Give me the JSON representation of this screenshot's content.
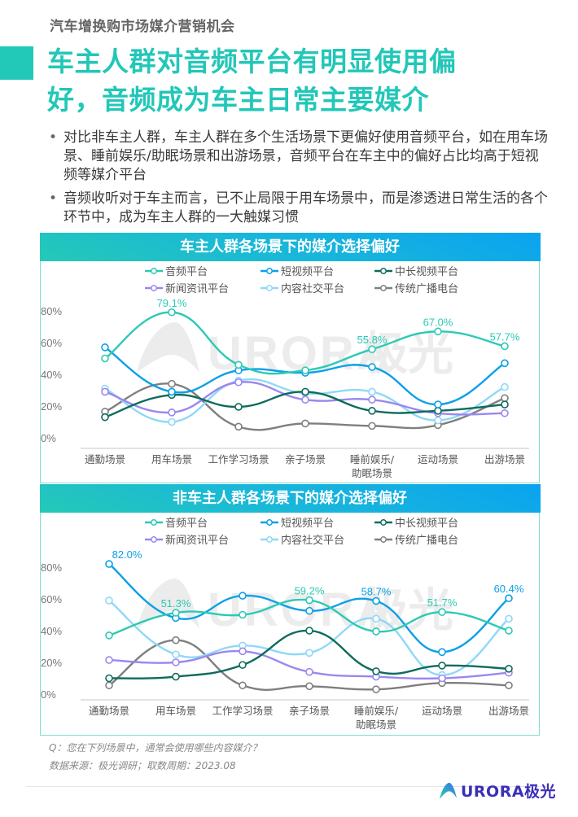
{
  "header": {
    "subtitle": "汽车增换购市场媒介营销机会",
    "title_line1": "车主人群对音频平台有明显使用偏",
    "title_line2": "好，音频成为车主日常主要媒介",
    "accent_color": "#22c7b8"
  },
  "bullets": [
    "对比非车主人群，车主人群在多个生活场景下更偏好使用音频平台，如在用车场景、睡前娱乐/助眠场景和出游场景，音频平台在车主中的偏好占比均高于短视频等媒介平台",
    "音频收听对于车主而言，已不止局限于用车场景中，而是渗透进日常生活的各个环节中，成为车主人群的一大触媒习惯"
  ],
  "bullet_symbol": "•",
  "watermark": {
    "latin": "URORA",
    "cjk": "极光"
  },
  "chart_data": [
    {
      "type": "line",
      "title": "车主人群各场景下的媒介选择偏好",
      "xlabel": "",
      "ylabel": "",
      "categories": [
        "通勤场景",
        "用车场景",
        "工作学习场景",
        "亲子场景",
        "睡前娱乐/助眠场景",
        "运动场景",
        "出游场景"
      ],
      "ylim": [
        0,
        80
      ],
      "yticks": [
        "0%",
        "20%",
        "40%",
        "60%",
        "80%"
      ],
      "legend_position": "top",
      "grid": false,
      "series": [
        {
          "name": "音频平台",
          "color": "#2cc9b5",
          "values": [
            50,
            79.1,
            46,
            42.5,
            55.8,
            67.0,
            57.7
          ],
          "labels": [
            "",
            "79.1%",
            "",
            "",
            "55.8%",
            "67.0%",
            "57.7%"
          ]
        },
        {
          "name": "短视频平台",
          "color": "#0aa0e8",
          "values": [
            57,
            29,
            42.5,
            41,
            44.6,
            21,
            47
          ],
          "labels": [
            "",
            "",
            "",
            "",
            "",
            "",
            ""
          ]
        },
        {
          "name": "中长视频平台",
          "color": "#0e6b5c",
          "values": [
            13,
            27,
            19.5,
            29,
            17,
            17,
            21
          ],
          "labels": [
            "",
            "",
            "",
            "",
            "",
            "",
            ""
          ]
        },
        {
          "name": "新闻资讯平台",
          "color": "#9b87f0",
          "values": [
            29,
            16,
            35,
            24,
            24,
            15.5,
            15.5
          ],
          "labels": [
            "",
            "",
            "",
            "",
            "",
            "",
            ""
          ]
        },
        {
          "name": "内容社交平台",
          "color": "#8fd8f8",
          "values": [
            31,
            10,
            36,
            28,
            29,
            11,
            32
          ],
          "labels": [
            "",
            "",
            "",
            "",
            "",
            "",
            ""
          ]
        },
        {
          "name": "传统广播电台",
          "color": "#7f7f7f",
          "values": [
            16.5,
            34,
            7,
            9,
            7.5,
            8,
            25
          ],
          "labels": [
            "",
            "",
            "",
            "",
            "",
            "",
            ""
          ]
        }
      ]
    },
    {
      "type": "line",
      "title": "非车主人群各场景下的媒介选择偏好",
      "xlabel": "",
      "ylabel": "",
      "categories": [
        "通勤场景",
        "用车场景",
        "工作学习场景",
        "亲子场景",
        "睡前娱乐/助眠场景",
        "运动场景",
        "出游场景"
      ],
      "ylim": [
        0,
        80
      ],
      "yticks": [
        "0%",
        "20%",
        "40%",
        "60%",
        "80%"
      ],
      "legend_position": "top",
      "grid": false,
      "series": [
        {
          "name": "音频平台",
          "color": "#2cc9b5",
          "values": [
            37,
            51.3,
            50,
            59.2,
            39.5,
            51.7,
            40
          ],
          "labels": [
            "",
            "51.3%",
            "",
            "59.2%",
            "",
            "51.7%",
            ""
          ]
        },
        {
          "name": "短视频平台",
          "color": "#0aa0e8",
          "values": [
            82.0,
            48,
            62,
            52.5,
            58.7,
            26.5,
            60.4
          ],
          "labels": [
            "82.0%",
            "",
            "",
            "",
            "58.7%",
            "",
            "60.4%"
          ]
        },
        {
          "name": "中长视频平台",
          "color": "#0e6b5c",
          "values": [
            10,
            11,
            18.4,
            40,
            14.4,
            18,
            16
          ],
          "labels": [
            "",
            "",
            "",
            "",
            "",
            "",
            ""
          ]
        },
        {
          "name": "新闻资讯平台",
          "color": "#9b87f0",
          "values": [
            21.5,
            20,
            27,
            14,
            11,
            10,
            13.5
          ],
          "labels": [
            "",
            "",
            "",
            "",
            "",
            "",
            ""
          ]
        },
        {
          "name": "内容社交平台",
          "color": "#8fd8f8",
          "values": [
            59,
            25,
            30.6,
            26,
            47.5,
            12,
            47.5
          ],
          "labels": [
            "",
            "",
            "",
            "",
            "",
            "",
            ""
          ]
        },
        {
          "name": "传统广播电台",
          "color": "#7f7f7f",
          "values": [
            5.5,
            34,
            5.5,
            5,
            3,
            7,
            5.5
          ],
          "labels": [
            "",
            "",
            "",
            "",
            "",
            "",
            ""
          ]
        }
      ]
    }
  ],
  "notes": {
    "question": "Q：您在下列场景中，通常会使用哪些内容媒介？",
    "source": "数据来源：极光调研；取数周期：2023.08"
  },
  "logo": {
    "text": "URORA极光"
  }
}
